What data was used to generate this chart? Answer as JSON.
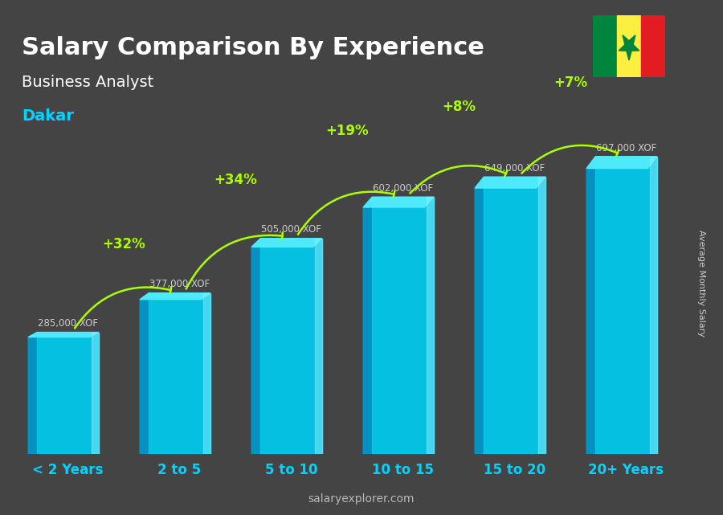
{
  "title": "Salary Comparison By Experience",
  "subtitle": "Business Analyst",
  "city": "Dakar",
  "ylabel": "Average Monthly Salary",
  "watermark": "salaryexplorer.com",
  "categories": [
    "< 2 Years",
    "2 to 5",
    "5 to 10",
    "10 to 15",
    "15 to 20",
    "20+ Years"
  ],
  "values": [
    285000,
    377000,
    505000,
    602000,
    649000,
    697000
  ],
  "labels": [
    "285,000 XOF",
    "377,000 XOF",
    "505,000 XOF",
    "602,000 XOF",
    "649,000 XOF",
    "697,000 XOF"
  ],
  "pct_changes": [
    null,
    "+32%",
    "+34%",
    "+19%",
    "+8%",
    "+7%"
  ],
  "bar_color_top": "#00d4ff",
  "bar_color_mid": "#00aaee",
  "bar_color_side": "#0077bb",
  "bar_color_face": "#00bbdd",
  "title_color": "#ffffff",
  "subtitle_color": "#ffffff",
  "city_color": "#00d4ff",
  "label_color": "#cccccc",
  "pct_color": "#aaff00",
  "arrow_color": "#aaff00",
  "xtick_color": "#00d4ff",
  "ylabel_color": "#cccccc",
  "watermark_color": "#cccccc",
  "background_color": "#555555",
  "ylim": [
    0,
    800000
  ],
  "bar_width": 0.55
}
